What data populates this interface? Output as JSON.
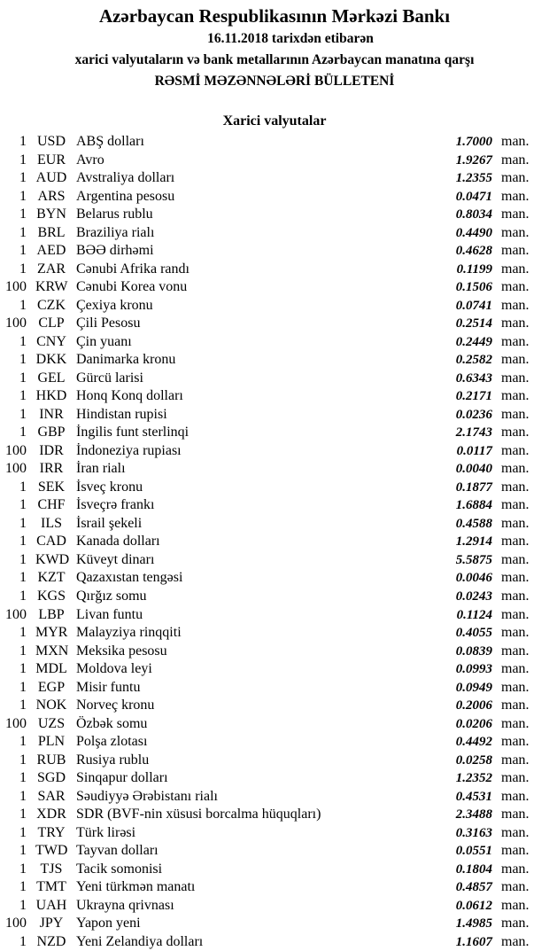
{
  "header": {
    "title": "Azərbaycan Respublikasının Mərkəzi Bankı",
    "date_line": "16.11.2018  tarixdən etibarən",
    "subtitle": "xarici valyutaların və bank metallarının Azərbaycan manatına qarşı",
    "bulletin": "RƏSMİ MƏZƏNNƏLƏRİ BÜLLETENİ",
    "section": "Xarici valyutalar"
  },
  "unit_label": "man.",
  "rates": [
    {
      "amount": "1",
      "code": "USD",
      "name": "ABŞ dolları",
      "value": "1.7000"
    },
    {
      "amount": "1",
      "code": "EUR",
      "name": "Avro",
      "value": "1.9267"
    },
    {
      "amount": "1",
      "code": "AUD",
      "name": "Avstraliya dolları",
      "value": "1.2355"
    },
    {
      "amount": "1",
      "code": "ARS",
      "name": "Argentina pesosu",
      "value": "0.0471"
    },
    {
      "amount": "1",
      "code": "BYN",
      "name": "Belarus rublu",
      "value": "0.8034"
    },
    {
      "amount": "1",
      "code": "BRL",
      "name": "Braziliya rialı",
      "value": "0.4490"
    },
    {
      "amount": "1",
      "code": "AED",
      "name": "BƏƏ dirhəmi",
      "value": "0.4628"
    },
    {
      "amount": "1",
      "code": "ZAR",
      "name": "Cənubi Afrika randı",
      "value": "0.1199"
    },
    {
      "amount": "100",
      "code": "KRW",
      "name": "Cənubi Korea vonu",
      "value": "0.1506"
    },
    {
      "amount": "1",
      "code": "CZK",
      "name": "Çexiya kronu",
      "value": "0.0741"
    },
    {
      "amount": "100",
      "code": "CLP",
      "name": "Çili Pesosu",
      "value": "0.2514"
    },
    {
      "amount": "1",
      "code": "CNY",
      "name": "Çin yuanı",
      "value": "0.2449"
    },
    {
      "amount": "1",
      "code": "DKK",
      "name": "Danimarka kronu",
      "value": "0.2582"
    },
    {
      "amount": "1",
      "code": "GEL",
      "name": "Gürcü larisi",
      "value": "0.6343"
    },
    {
      "amount": "1",
      "code": "HKD",
      "name": "Honq Konq dolları",
      "value": "0.2171"
    },
    {
      "amount": "1",
      "code": "INR",
      "name": "Hindistan rupisi",
      "value": "0.0236"
    },
    {
      "amount": "1",
      "code": "GBP",
      "name": "İngilis funt sterlinqi",
      "value": "2.1743"
    },
    {
      "amount": "100",
      "code": "IDR",
      "name": "İndoneziya rupiası",
      "value": "0.0117"
    },
    {
      "amount": "100",
      "code": "IRR",
      "name": "İran rialı",
      "value": "0.0040"
    },
    {
      "amount": "1",
      "code": "SEK",
      "name": "İsveç kronu",
      "value": "0.1877"
    },
    {
      "amount": "1",
      "code": "CHF",
      "name": "İsveçrə frankı",
      "value": "1.6884"
    },
    {
      "amount": "1",
      "code": "ILS",
      "name": "İsrail şekeli",
      "value": "0.4588"
    },
    {
      "amount": "1",
      "code": "CAD",
      "name": "Kanada dolları",
      "value": "1.2914"
    },
    {
      "amount": "1",
      "code": "KWD",
      "name": "Küveyt dinarı",
      "value": "5.5875"
    },
    {
      "amount": "1",
      "code": "KZT",
      "name": "Qazaxıstan tengəsi",
      "value": "0.0046"
    },
    {
      "amount": "1",
      "code": "KGS",
      "name": "Qırğız somu",
      "value": "0.0243"
    },
    {
      "amount": "100",
      "code": "LBP",
      "name": "Livan funtu",
      "value": "0.1124"
    },
    {
      "amount": "1",
      "code": "MYR",
      "name": "Malayziya rinqqiti",
      "value": "0.4055"
    },
    {
      "amount": "1",
      "code": "MXN",
      "name": "Meksika pesosu",
      "value": "0.0839"
    },
    {
      "amount": "1",
      "code": "MDL",
      "name": "Moldova leyi",
      "value": "0.0993"
    },
    {
      "amount": "1",
      "code": "EGP",
      "name": "Misir funtu",
      "value": "0.0949"
    },
    {
      "amount": "1",
      "code": "NOK",
      "name": "Norveç kronu",
      "value": "0.2006"
    },
    {
      "amount": "100",
      "code": "UZS",
      "name": "Özbək somu",
      "value": "0.0206"
    },
    {
      "amount": "1",
      "code": "PLN",
      "name": "Polşa zlotası",
      "value": "0.4492"
    },
    {
      "amount": "1",
      "code": "RUB",
      "name": "Rusiya rublu",
      "value": "0.0258"
    },
    {
      "amount": "1",
      "code": "SGD",
      "name": "Sinqapur dolları",
      "value": "1.2352"
    },
    {
      "amount": "1",
      "code": "SAR",
      "name": "Səudiyyə Ərəbistanı rialı",
      "value": "0.4531"
    },
    {
      "amount": "1",
      "code": "XDR",
      "name": "SDR (BVF-nin xüsusi borcalma hüquqları)",
      "value": "2.3488"
    },
    {
      "amount": "1",
      "code": "TRY",
      "name": "Türk lirəsi",
      "value": "0.3163"
    },
    {
      "amount": "1",
      "code": "TWD",
      "name": "Tayvan dolları",
      "value": "0.0551"
    },
    {
      "amount": "1",
      "code": "TJS",
      "name": "Tacik somonisi",
      "value": "0.1804"
    },
    {
      "amount": "1",
      "code": "TMT",
      "name": "Yeni türkmən manatı",
      "value": "0.4857"
    },
    {
      "amount": "1",
      "code": "UAH",
      "name": "Ukrayna qrivnası",
      "value": "0.0612"
    },
    {
      "amount": "100",
      "code": "JPY",
      "name": "Yapon yeni",
      "value": "1.4985"
    },
    {
      "amount": "1",
      "code": "NZD",
      "name": "Yeni Zelandiya dolları",
      "value": "1.1607"
    }
  ]
}
